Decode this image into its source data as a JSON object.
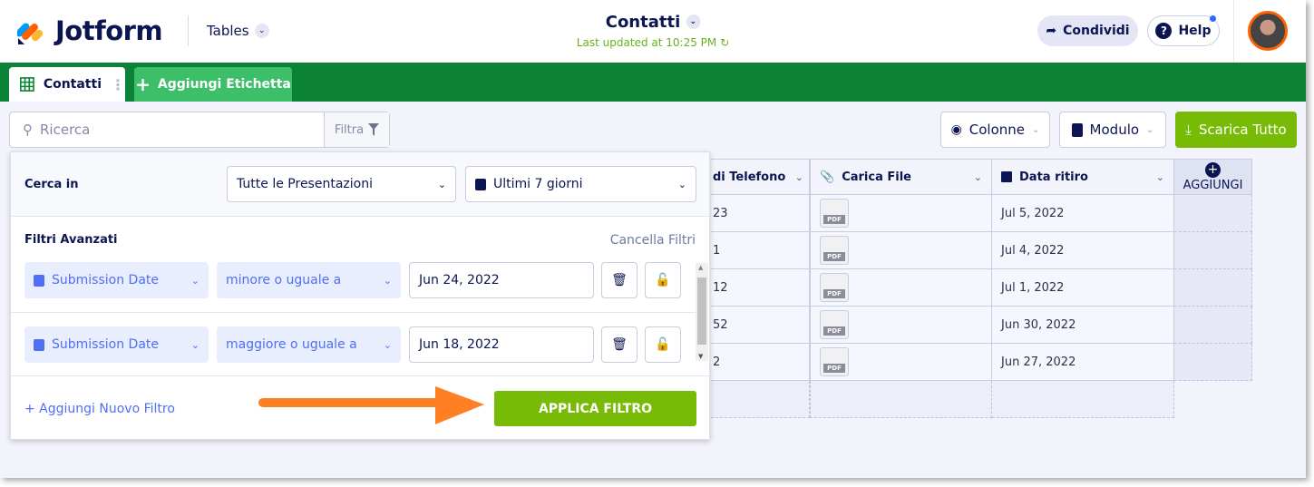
{
  "header": {
    "brand": "Jotform",
    "app_switcher": "Tables",
    "title": "Contatti",
    "last_updated": "Last updated at 10:25 PM",
    "share": "Condividi",
    "help": "Help"
  },
  "tabs": {
    "active": "Contatti",
    "add": "Aggiungi Etichetta"
  },
  "toolbar": {
    "search_placeholder": "Ricerca",
    "filter": "Filtra",
    "columns": "Colonne",
    "form": "Modulo",
    "download": "Scarica Tutto"
  },
  "table": {
    "columns": [
      "di Telefono",
      "Carica File",
      "Data ritiro"
    ],
    "add_column": "AGGIUNGI",
    "rows": [
      {
        "phone": "23",
        "file": "PDF",
        "date": "Jul 5, 2022"
      },
      {
        "phone": "1",
        "file": "PDF",
        "date": "Jul 4, 2022"
      },
      {
        "phone": "12",
        "file": "PDF",
        "date": "Jul 1, 2022"
      },
      {
        "phone": "52",
        "file": "PDF",
        "date": "Jun 30, 2022"
      },
      {
        "phone": "2",
        "file": "PDF",
        "date": "Jun 27, 2022"
      }
    ]
  },
  "filter_panel": {
    "search_in_label": "Cerca in",
    "scope": "Tutte le Presentazioni",
    "range": "Ultimi 7 giorni",
    "advanced_label": "Filtri Avanzati",
    "clear": "Cancella Filtri",
    "filters": [
      {
        "field": "Submission Date",
        "operator": "minore o uguale a",
        "value": "Jun 24, 2022"
      },
      {
        "field": "Submission Date",
        "operator": "maggiore o uguale a",
        "value": "Jun 18, 2022"
      }
    ],
    "add_filter": "+ Aggiungi Nuovo Filtro",
    "apply": "APPLICA FILTRO"
  },
  "colors": {
    "green_bar": "#0b8235",
    "accent_green": "#78bb07",
    "link_blue": "#4f6ff4",
    "arrow": "#ff7f24"
  }
}
